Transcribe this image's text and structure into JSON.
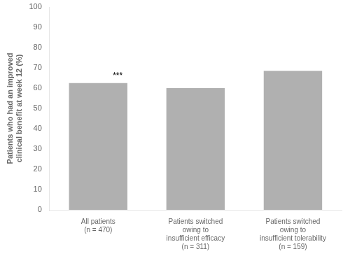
{
  "chart_data": {
    "type": "bar",
    "categories": [
      "All patients\n(n = 470)",
      "Patients switched\nowing to\ninsufficient efficacy\n(n = 311)",
      "Patients switched\nowing to\ninsufficient tolerability\n(n = 159)"
    ],
    "values": [
      62.5,
      60.0,
      68.5
    ],
    "color": "#b0b0b0",
    "ylabel": "Patients who had an improved\nclinical benefit at week 12 (%)",
    "ylim": [
      0,
      100
    ],
    "yticks": [
      0,
      10,
      20,
      30,
      40,
      50,
      60,
      70,
      80,
      90,
      100
    ],
    "grid": false,
    "annotations": [
      {
        "text": "***",
        "category": "All patients\n(n = 470)"
      }
    ]
  }
}
